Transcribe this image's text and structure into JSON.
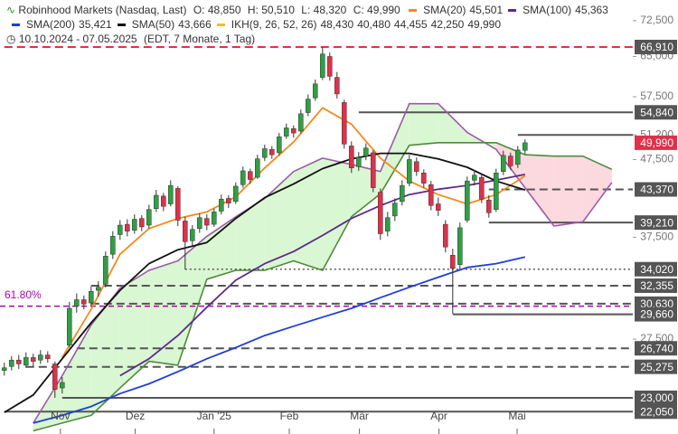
{
  "chart_data": {
    "type": "candlestick",
    "title": "Robinhood Markets (Nasdaq, Last)",
    "ohlc_labels": [
      "O: 48,850",
      "H: 50,510",
      "L: 48,320",
      "C: 49,990"
    ],
    "subtitle": "10.10.2024 - 07.05.2025",
    "info": "(EDT, 7 Monate, 1 Tag)",
    "log_scale": true,
    "up_color": "#2ea043",
    "down_color": "#e0304a",
    "wick_color": "#333333",
    "ylim": [
      20.6,
      77.2
    ],
    "xlim": [
      -0.6,
      86.9
    ],
    "yticks": [
      {
        "value": 72.5,
        "label": "72,500"
      },
      {
        "value": 65,
        "label": "65,000"
      },
      {
        "value": 57.5,
        "label": "57,500"
      },
      {
        "value": 51.2,
        "label": "51,200"
      },
      {
        "value": 47.5,
        "label": "47,500"
      },
      {
        "value": 37.5,
        "label": "37,500"
      },
      {
        "value": 27.5,
        "label": "27,500"
      }
    ],
    "xticks": [
      {
        "value": 7.75,
        "label": "Nov"
      },
      {
        "value": 18.1,
        "label": "Dez"
      },
      {
        "value": 29,
        "label": "Jan '25"
      },
      {
        "value": 39.4,
        "label": "Feb"
      },
      {
        "value": 49.1,
        "label": "Mär"
      },
      {
        "value": 60.1,
        "label": "Apr"
      },
      {
        "value": 70.9,
        "label": "Mai"
      }
    ],
    "ohlc": [
      [
        25.0,
        25.6,
        24.6,
        25.2
      ],
      [
        25.3,
        26.1,
        25.0,
        25.8
      ],
      [
        25.8,
        26.2,
        25.1,
        25.5
      ],
      [
        25.4,
        26.4,
        25.2,
        26.0
      ],
      [
        26.0,
        26.3,
        25.3,
        25.7
      ],
      [
        25.8,
        26.6,
        25.5,
        26.2
      ],
      [
        26.2,
        26.5,
        25.6,
        25.9
      ],
      [
        25.5,
        25.7,
        23.0,
        23.6
      ],
      [
        23.7,
        24.5,
        23.3,
        24.1
      ],
      [
        27.0,
        30.8,
        26.8,
        30.2
      ],
      [
        30.4,
        31.6,
        29.8,
        31.0
      ],
      [
        31.0,
        31.4,
        30.1,
        30.6
      ],
      [
        30.7,
        32.3,
        30.4,
        31.8
      ],
      [
        31.9,
        32.8,
        31.3,
        32.2
      ],
      [
        32.5,
        35.9,
        32.2,
        35.4
      ],
      [
        35.6,
        38.2,
        35.1,
        37.6
      ],
      [
        37.8,
        39.5,
        37.2,
        38.9
      ],
      [
        39.0,
        39.6,
        37.6,
        38.2
      ],
      [
        38.3,
        40.2,
        37.9,
        39.6
      ],
      [
        39.7,
        40.1,
        38.2,
        38.7
      ],
      [
        38.9,
        41.4,
        38.5,
        40.8
      ],
      [
        40.9,
        43.3,
        40.5,
        42.6
      ],
      [
        42.5,
        42.9,
        40.6,
        41.2
      ],
      [
        41.5,
        44.6,
        41.2,
        43.9
      ],
      [
        43.5,
        43.8,
        38.8,
        39.5
      ],
      [
        39.4,
        39.9,
        34.0,
        37.0
      ],
      [
        37.1,
        38.9,
        36.5,
        38.4
      ],
      [
        38.5,
        40.3,
        38.0,
        39.8
      ],
      [
        39.7,
        40.2,
        38.3,
        38.9
      ],
      [
        39.0,
        40.9,
        38.7,
        40.5
      ],
      [
        40.6,
        42.7,
        40.2,
        42.1
      ],
      [
        42.2,
        42.6,
        41.0,
        41.6
      ],
      [
        41.8,
        44.3,
        41.5,
        43.8
      ],
      [
        44.0,
        46.5,
        43.6,
        45.9
      ],
      [
        45.8,
        46.2,
        44.1,
        44.7
      ],
      [
        45.0,
        48.2,
        44.8,
        47.6
      ],
      [
        47.8,
        49.7,
        47.3,
        49.1
      ],
      [
        49.0,
        49.5,
        47.6,
        48.2
      ],
      [
        48.5,
        51.5,
        48.1,
        50.9
      ],
      [
        51.0,
        53.0,
        50.6,
        52.3
      ],
      [
        52.2,
        52.7,
        50.8,
        51.5
      ],
      [
        51.8,
        55.3,
        51.4,
        54.6
      ],
      [
        54.8,
        57.9,
        54.2,
        57.1
      ],
      [
        57.3,
        60.6,
        56.8,
        59.8
      ],
      [
        61.0,
        66.9,
        60.5,
        65.5
      ],
      [
        65.0,
        65.8,
        60.4,
        61.2
      ],
      [
        61.0,
        62.0,
        57.2,
        58.0
      ],
      [
        56.5,
        57.0,
        49.1,
        49.8
      ],
      [
        49.5,
        50.2,
        45.6,
        46.3
      ],
      [
        46.5,
        48.6,
        45.9,
        47.8
      ],
      [
        48.0,
        49.9,
        47.4,
        49.2
      ],
      [
        48.5,
        48.9,
        43.0,
        43.6
      ],
      [
        43.0,
        43.5,
        37.2,
        37.9
      ],
      [
        38.2,
        40.5,
        37.6,
        39.8
      ],
      [
        40.0,
        42.2,
        39.4,
        41.6
      ],
      [
        41.8,
        44.6,
        41.3,
        43.9
      ],
      [
        44.2,
        48.2,
        43.8,
        47.5
      ],
      [
        47.2,
        47.8,
        45.2,
        45.8
      ],
      [
        45.6,
        46.1,
        43.6,
        44.2
      ],
      [
        44.0,
        44.5,
        40.7,
        41.3
      ],
      [
        41.5,
        42.3,
        40.0,
        40.7
      ],
      [
        39.0,
        39.5,
        35.8,
        36.4
      ],
      [
        35.5,
        36.2,
        29.7,
        34.1
      ],
      [
        34.5,
        39.2,
        34.0,
        38.6
      ],
      [
        39.5,
        45.1,
        39.2,
        44.5
      ],
      [
        44.6,
        46.0,
        43.9,
        45.3
      ],
      [
        45.0,
        45.5,
        41.6,
        42.1
      ],
      [
        42.0,
        42.6,
        39.8,
        40.4
      ],
      [
        40.8,
        46.2,
        40.5,
        45.6
      ],
      [
        45.8,
        48.8,
        45.3,
        48.1
      ],
      [
        48.0,
        48.5,
        46.0,
        46.6
      ],
      [
        46.8,
        49.5,
        46.3,
        48.9
      ],
      [
        48.85,
        50.51,
        48.32,
        49.99
      ]
    ],
    "x": [
      0,
      4,
      8,
      12,
      16,
      20,
      24,
      28,
      32,
      36,
      40,
      44,
      48,
      52,
      56,
      60,
      64,
      68,
      72,
      76,
      80,
      84
    ],
    "series": [
      {
        "name": "SMA(20)",
        "legend_value": "45,501",
        "color": "#f28a1a",
        "values": [
          null,
          null,
          26.0,
          30.1,
          35.6,
          38.5,
          39.7,
          40.5,
          42.4,
          46.3,
          50.1,
          55.6,
          52.9,
          47.7,
          44.5,
          42.7,
          41.5,
          42.7,
          45.2,
          null,
          null,
          null
        ]
      },
      {
        "name": "SMA(100)",
        "legend_value": "45,363",
        "color": "#5b2a8c",
        "values": [
          null,
          null,
          null,
          null,
          24.6,
          25.9,
          27.8,
          30.3,
          32.9,
          34.6,
          35.9,
          37.7,
          39.7,
          41.3,
          42.7,
          43.4,
          43.9,
          44.6,
          45.4,
          null,
          null,
          null
        ]
      },
      {
        "name": "SMA(200)",
        "legend_value": "35,421",
        "color": "#1f3fd1",
        "values": [
          null,
          21.3,
          21.8,
          22.4,
          23.3,
          24.0,
          24.9,
          25.9,
          26.8,
          27.8,
          28.6,
          29.4,
          30.2,
          31.2,
          32.2,
          33.2,
          34.2,
          34.6,
          35.3,
          null,
          null,
          null
        ]
      },
      {
        "name": "SMA(50)",
        "legend_value": "43,666",
        "color": "#111111",
        "values": [
          22.0,
          23.2,
          25.9,
          28.9,
          31.9,
          34.6,
          36.1,
          36.9,
          39.7,
          42.3,
          44.1,
          46.2,
          47.6,
          48.4,
          48.4,
          47.6,
          46.4,
          44.5,
          43.3,
          null,
          null,
          null
        ]
      }
    ],
    "ichimoku": {
      "name": "IKH(9, 26, 52, 26)",
      "color": "#f0c020",
      "legend_values": [
        "48,430",
        "40,480",
        "44,455",
        "42,250",
        "49,990"
      ],
      "span_a_color": "#9b59a8",
      "span_b_color": "#4f8a3a",
      "up_fill": "#d9f7d2",
      "down_fill": "#fbd9de",
      "span_a": [
        null,
        21.3,
        24.6,
        28.7,
        32.1,
        33.9,
        34.9,
        37.6,
        39.9,
        42.2,
        45.8,
        47.7,
        46.8,
        45.8,
        56.3,
        56.3,
        51.6,
        49.0,
        43.6,
        38.8,
        39.3,
        44.3
      ],
      "span_b": [
        null,
        20.8,
        21.3,
        21.8,
        23.7,
        25.7,
        25.4,
        33.0,
        33.9,
        33.9,
        34.9,
        33.9,
        39.9,
        42.8,
        49.6,
        50.0,
        50.0,
        50.0,
        48.2,
        48.0,
        48.0,
        46.1
      ]
    },
    "levels": [
      {
        "value": 66.91,
        "label": "66,910",
        "style": "dashed",
        "color": "#e0304a",
        "from": 0
      },
      {
        "value": 54.84,
        "label": "54,840",
        "style": "solid",
        "color": "#555555",
        "from": 49
      },
      {
        "value": 51.2,
        "style": "solid",
        "color": "#555555",
        "from": 71
      },
      {
        "value": 43.37,
        "label": "43,370",
        "style": "dashed",
        "color": "#555555",
        "from": 67
      },
      {
        "value": 39.21,
        "label": "39,210",
        "style": "solid",
        "color": "#555555",
        "from": 67
      },
      {
        "value": 34.02,
        "label": "34,020",
        "style": "dotted",
        "color": "#555555",
        "from": 25
      },
      {
        "value": 32.355,
        "label": "32,355",
        "style": "dashed",
        "color": "#555555",
        "from": 12
      },
      {
        "value": 30.63,
        "label": "30,630",
        "style": "dashed",
        "color": "#555555",
        "from": 12
      },
      {
        "value": 29.66,
        "label": "29,660",
        "style": "solid",
        "color": "#555555",
        "from": 62
      },
      {
        "value": 26.74,
        "label": "26,740",
        "style": "dashed",
        "color": "#555555",
        "from": 10
      },
      {
        "value": 25.275,
        "label": "25,275",
        "style": "dashed",
        "color": "#555555",
        "from": 3
      },
      {
        "value": 23.0,
        "label": "23,000",
        "style": "solid",
        "color": "#555555",
        "from": 8
      },
      {
        "value": 22.05,
        "label": "22,050",
        "style": "solid",
        "color": "#555555",
        "from": 0
      }
    ],
    "fib": {
      "value": 30.4,
      "label": "61.80%",
      "color": "#b000b0"
    },
    "last": {
      "value": 49.99,
      "label": "49,990",
      "color": "#e0304a"
    }
  }
}
